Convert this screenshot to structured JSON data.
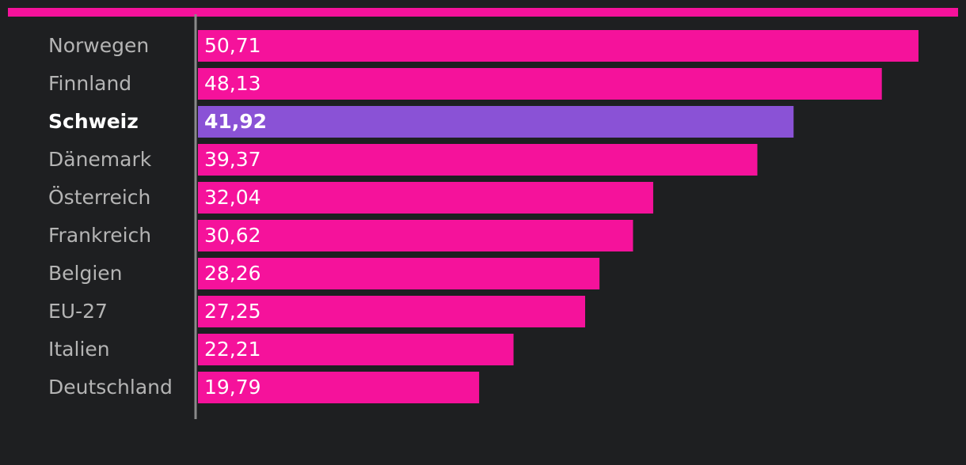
{
  "chart_data": {
    "type": "bar",
    "orientation": "horizontal",
    "categories": [
      "Norwegen",
      "Finnland",
      "Schweiz",
      "Dänemark",
      "Österreich",
      "Frankreich",
      "Belgien",
      "EU-27",
      "Italien",
      "Deutschland"
    ],
    "values": [
      50.71,
      48.13,
      41.92,
      39.37,
      32.04,
      30.62,
      28.26,
      27.25,
      22.21,
      19.79
    ],
    "value_labels": [
      "50,71",
      "48,13",
      "41,92",
      "39,37",
      "32,04",
      "30,62",
      "28,26",
      "27,25",
      "22,21",
      "19,79"
    ],
    "color": "#f5129b",
    "highlight_color": "#8a52d6",
    "highlight": [
      false,
      false,
      true,
      false,
      false,
      false,
      false,
      false,
      false,
      false
    ]
  }
}
